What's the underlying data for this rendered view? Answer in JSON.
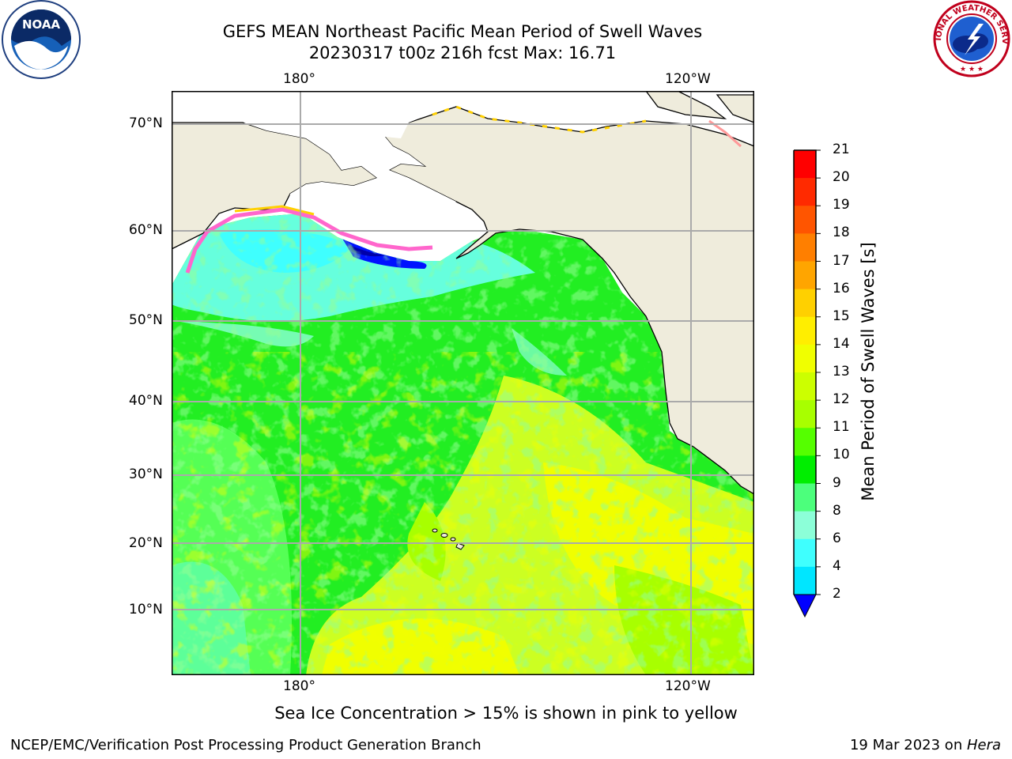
{
  "title_line1": "GEFS MEAN Northeast Pacific Mean Period of Swell Waves",
  "title_line2": "20230317 t00z 216h fcst   Max: 16.71",
  "map": {
    "top_lon_labels": [
      "180°",
      "120°W"
    ],
    "bottom_lon_labels": [
      "180°",
      "120°W"
    ],
    "lat_labels": [
      "70°N",
      "60°N",
      "50°N",
      "40°N",
      "30°N",
      "20°N",
      "10°N"
    ]
  },
  "colorbar": {
    "label": "Mean Period of Swell Waves [s]",
    "ticks": [
      "21",
      "20",
      "19",
      "18",
      "17",
      "16",
      "15",
      "14",
      "13",
      "12",
      "11",
      "10",
      "9",
      "8",
      "6",
      "4",
      "2"
    ],
    "colors": [
      "#ff0000",
      "#ff2a00",
      "#ff5500",
      "#ff7f00",
      "#ffa500",
      "#ffd000",
      "#ffee00",
      "#f0ff00",
      "#ccff00",
      "#a8ff00",
      "#55ff00",
      "#00ee00",
      "#4cff7c",
      "#8cffd8",
      "#3ffffe",
      "#00e6ff",
      "#0080ff"
    ],
    "extend_color": "#0000ff"
  },
  "colors": {
    "land": "#efecdc",
    "ice": "#ffffff",
    "ocean_green": "#22ee22",
    "ocean_mid_green": "#55ff55",
    "ocean_yellowgreen": "#ccff22",
    "ocean_yellow": "#f0ff00",
    "ocean_cyan": "#66ffdd",
    "ocean_blue": "#0011ff"
  },
  "note": "Sea Ice Concentration > 15% is shown in pink to yellow",
  "footer_left": "NCEP/EMC/Verification Post Processing Product Generation Branch",
  "footer_right_prefix": "19 Mar 2023 on ",
  "footer_right_italic": "Hera",
  "logos": {
    "noaa_text": "NOAA",
    "nws_text": "NATIONAL WEATHER SERVICE"
  }
}
